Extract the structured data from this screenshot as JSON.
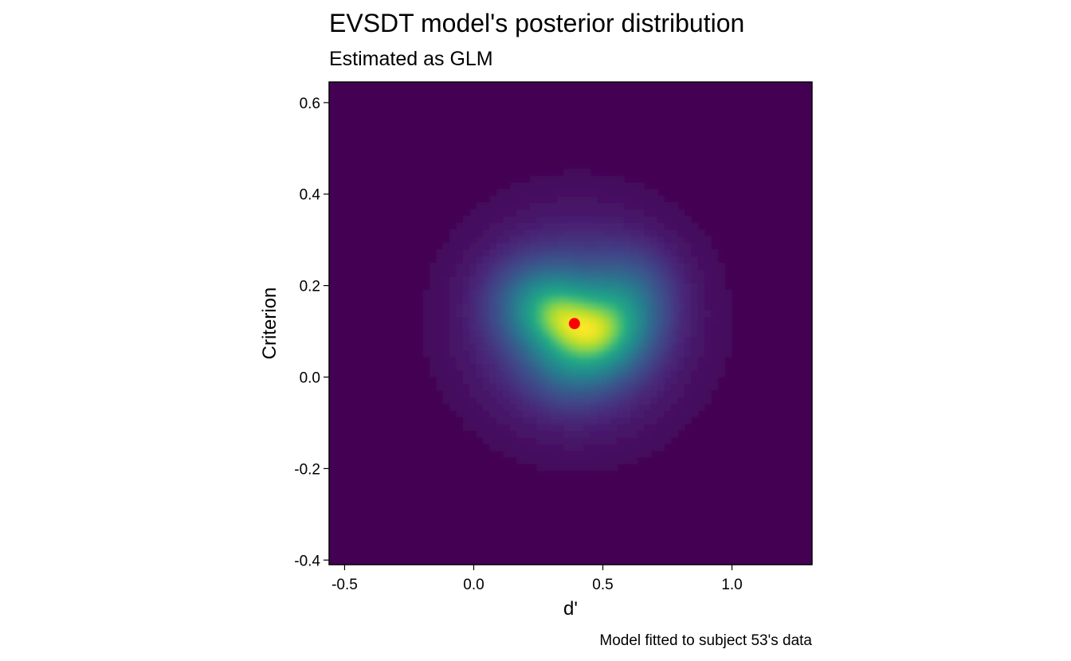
{
  "chart_data": {
    "type": "heatmap",
    "title": "EVSDT model's posterior distribution",
    "subtitle": "Estimated as GLM",
    "caption": "Model fitted to subject 53's data",
    "xlabel": "d'",
    "ylabel": "Criterion",
    "xlim": [
      -0.56,
      1.31
    ],
    "ylim": [
      -0.41,
      0.645
    ],
    "x_ticks": [
      -0.5,
      0.0,
      0.5,
      1.0
    ],
    "x_tick_labels": [
      "-0.5",
      "0.0",
      "0.5",
      "1.0"
    ],
    "y_ticks": [
      -0.4,
      -0.2,
      0.0,
      0.2,
      0.4,
      0.6
    ],
    "y_tick_labels": [
      "-0.4",
      "-0.2",
      "0.0",
      "0.2",
      "0.4",
      "0.6"
    ],
    "colormap": "viridis",
    "background_color": "#440154",
    "grid": false,
    "legend": "none",
    "density": {
      "x_mean": 0.4,
      "y_mean": 0.12,
      "x_sd": 0.2,
      "y_sd": 0.11,
      "modes": [
        {
          "x": 0.32,
          "y": 0.14,
          "weight": 1.0
        },
        {
          "x": 0.55,
          "y": 0.12,
          "weight": 0.75
        },
        {
          "x": 0.47,
          "y": 0.07,
          "weight": 0.6
        },
        {
          "x": 0.36,
          "y": 0.03,
          "weight": 0.35
        },
        {
          "x": 0.62,
          "y": 0.2,
          "weight": 0.3
        },
        {
          "x": 0.2,
          "y": 0.17,
          "weight": 0.3
        }
      ]
    },
    "point_estimate": {
      "x": 0.39,
      "y": 0.117,
      "color": "#ff0000"
    }
  }
}
